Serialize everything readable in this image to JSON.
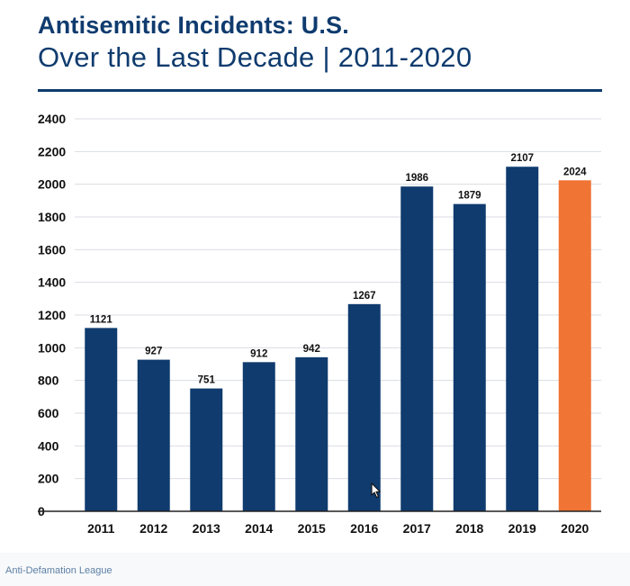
{
  "header": {
    "title": "Antisemitic Incidents: U.S.",
    "subtitle": "Over the Last Decade | 2011-2020"
  },
  "source": "Anti-Defamation League",
  "colors": {
    "bar": "#0f3b6e",
    "highlight": "#f07433",
    "text": "#0f3b6e",
    "grid": "#d9dde3"
  },
  "chart_data": {
    "type": "bar",
    "title": "Antisemitic Incidents: U.S.",
    "subtitle": "Over the Last Decade | 2011-2020",
    "xlabel": "",
    "ylabel": "",
    "categories": [
      "2011",
      "2012",
      "2013",
      "2014",
      "2015",
      "2016",
      "2017",
      "2018",
      "2019",
      "2020"
    ],
    "values": [
      1121,
      927,
      751,
      912,
      942,
      1267,
      1986,
      1879,
      2107,
      2024
    ],
    "data_labels": [
      "1121",
      "927",
      "751",
      "912",
      "942",
      "1267",
      "1986",
      "1879",
      "2107",
      "2024"
    ],
    "highlight_category": "2020",
    "ylim": [
      0,
      2400
    ],
    "yticks": [
      0,
      200,
      400,
      600,
      800,
      1000,
      1200,
      1400,
      1600,
      1800,
      2000,
      2200,
      2400
    ],
    "ytick_labels": [
      "0",
      "200",
      "400",
      "600",
      "800",
      "1000",
      "1200",
      "1400",
      "1600",
      "1800",
      "2000",
      "2200",
      "2400"
    ],
    "grid": true,
    "legend": "none"
  }
}
